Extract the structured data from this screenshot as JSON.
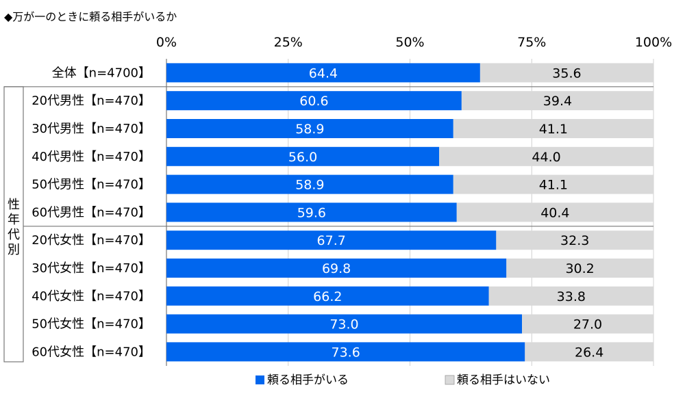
{
  "chart_data": {
    "type": "bar",
    "stacked": true,
    "orientation": "horizontal",
    "title": "◆万が一のときに頼る相手がいるか",
    "group_label": "性年代別",
    "categories": [
      "全体【n=4700】",
      "20代男性【n=470】",
      "30代男性【n=470】",
      "40代男性【n=470】",
      "50代男性【n=470】",
      "60代男性【n=470】",
      "20代女性【n=470】",
      "30代女性【n=470】",
      "40代女性【n=470】",
      "50代女性【n=470】",
      "60代女性【n=470】"
    ],
    "series": [
      {
        "name": "頼る相手がいる",
        "color": "#0066ee",
        "values": [
          64.4,
          60.6,
          58.9,
          56.0,
          58.9,
          59.6,
          67.7,
          69.8,
          66.2,
          73.0,
          73.6
        ]
      },
      {
        "name": "頼る相手はいない",
        "color": "#d9d9d9",
        "values": [
          35.6,
          39.4,
          41.1,
          44.0,
          41.1,
          40.4,
          32.3,
          30.2,
          33.8,
          27.0,
          26.4
        ]
      }
    ],
    "xlim": [
      0,
      100
    ],
    "x_ticks": [
      "0%",
      "25%",
      "50%",
      "75%",
      "100%"
    ],
    "grid": true,
    "legend_position": "bottom"
  }
}
